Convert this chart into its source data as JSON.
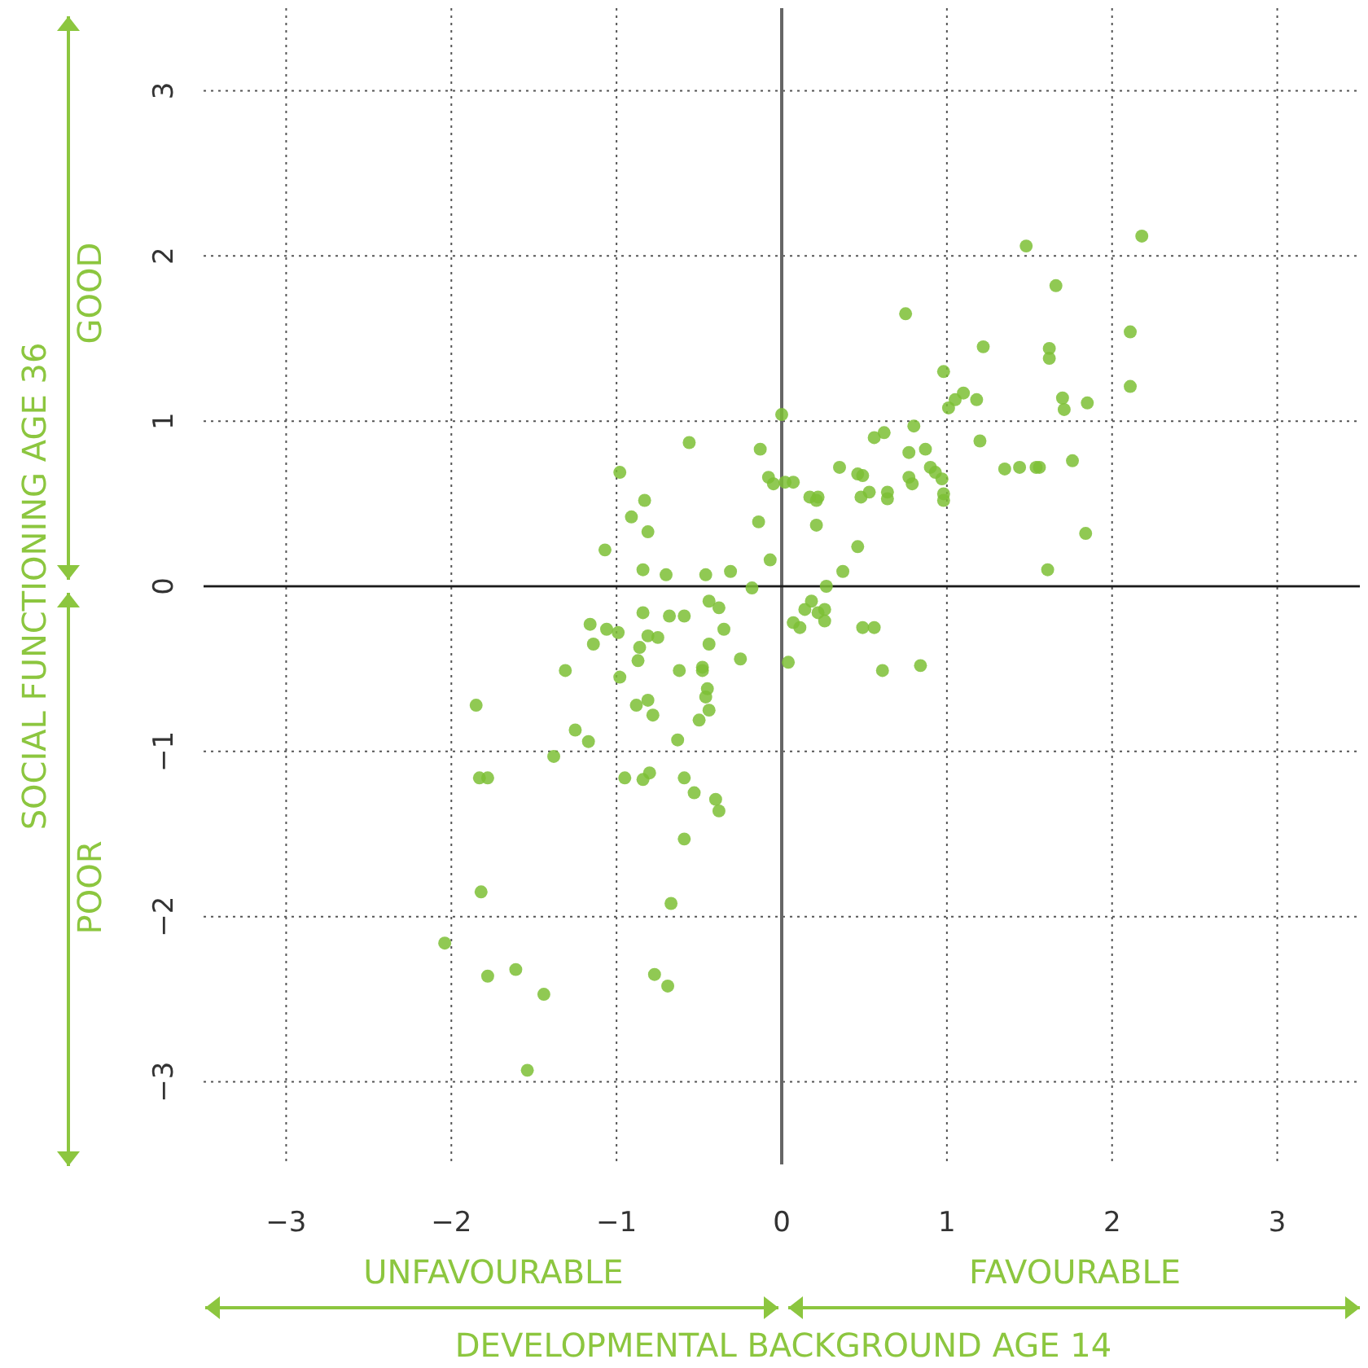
{
  "chart_data": {
    "type": "scatter",
    "xlabel": "DEVELOPMENTAL BACKGROUND AGE 14",
    "ylabel": "SOCIAL FUNCTIONING AGE 36",
    "annotations": [
      "GOOD",
      "POOR",
      "UNFAVOURABLE",
      "FAVOURABLE"
    ],
    "xlim": [
      -3.5,
      3.5
    ],
    "ylim": [
      -3.5,
      3.5
    ],
    "xticks": [
      {
        "value": -3,
        "label": "−3"
      },
      {
        "value": -2,
        "label": "−2"
      },
      {
        "value": -1,
        "label": "−1"
      },
      0,
      1,
      2,
      3
    ],
    "yticks": [
      {
        "value": -3,
        "label": "−3"
      },
      {
        "value": -2,
        "label": "−2"
      },
      {
        "value": -1,
        "label": "−1"
      },
      0,
      1,
      2,
      3
    ],
    "grid": true,
    "marker": "circle",
    "ref_lines": [
      {
        "axis": "x",
        "value": 0,
        "color": "#666666"
      },
      {
        "axis": "y",
        "value": 0,
        "color": "#1a1a1a"
      }
    ],
    "series": [
      {
        "color": "#7cbf35",
        "x": [
          1.48,
          2.18,
          1.66,
          1.22,
          1.62,
          1.62,
          2.11,
          2.11,
          1.7,
          1.71,
          1.85,
          1.76,
          1.56,
          1.84,
          1.61,
          0.75,
          0.98,
          1.1,
          1.05,
          1.01,
          1.18,
          0.0,
          0.8,
          0.62,
          0.56,
          1.2,
          -0.13,
          0.77,
          0.87,
          0.35,
          0.9,
          0.93,
          0.97,
          1.35,
          1.44,
          1.54,
          0.46,
          0.49,
          0.77,
          0.79,
          -0.08,
          -0.05,
          0.02,
          0.07,
          0.48,
          0.53,
          0.64,
          0.64,
          0.98,
          0.98,
          0.17,
          0.22,
          0.21,
          -0.14,
          0.21,
          0.46,
          -0.07,
          0.37,
          0.27,
          -0.18,
          0.18,
          0.14,
          0.22,
          0.26,
          0.26,
          0.07,
          0.11,
          0.49,
          0.56,
          0.04,
          0.61,
          0.84,
          -0.56,
          -0.98,
          -0.83,
          -0.91,
          -0.81,
          -1.07,
          -0.84,
          -0.7,
          -0.46,
          -0.31,
          -0.84,
          -0.68,
          -0.59,
          -0.44,
          -0.38,
          -1.16,
          -1.06,
          -0.99,
          -0.81,
          -0.75,
          -0.35,
          -1.14,
          -0.86,
          -0.44,
          -0.87,
          -0.25,
          -1.31,
          -0.62,
          -0.48,
          -0.48,
          -0.98,
          -0.45,
          -0.46,
          -0.44,
          -0.5,
          -0.88,
          -0.81,
          -0.78,
          -1.85,
          -1.25,
          -1.17,
          -0.63,
          -1.38,
          -1.83,
          -1.78,
          -0.95,
          -0.84,
          -0.8,
          -0.59,
          -0.53,
          -0.4,
          -0.38,
          -0.59,
          -1.82,
          -0.67,
          -2.04,
          -1.78,
          -1.61,
          -1.44,
          -0.77,
          -0.69,
          -1.54
        ],
        "values": [
          2.06,
          2.12,
          1.82,
          1.45,
          1.44,
          1.38,
          1.54,
          1.21,
          1.14,
          1.07,
          1.11,
          0.76,
          0.72,
          0.32,
          0.1,
          1.65,
          1.3,
          1.17,
          1.13,
          1.08,
          1.13,
          1.04,
          0.97,
          0.93,
          0.9,
          0.88,
          0.83,
          0.81,
          0.83,
          0.72,
          0.72,
          0.69,
          0.65,
          0.71,
          0.72,
          0.72,
          0.68,
          0.67,
          0.66,
          0.62,
          0.66,
          0.62,
          0.63,
          0.63,
          0.54,
          0.57,
          0.57,
          0.53,
          0.56,
          0.52,
          0.54,
          0.54,
          0.52,
          0.39,
          0.37,
          0.24,
          0.16,
          0.09,
          0.0,
          -0.01,
          -0.09,
          -0.14,
          -0.16,
          -0.14,
          -0.21,
          -0.22,
          -0.25,
          -0.25,
          -0.25,
          -0.46,
          -0.51,
          -0.48,
          0.87,
          0.69,
          0.52,
          0.42,
          0.33,
          0.22,
          0.1,
          0.07,
          0.07,
          0.09,
          -0.16,
          -0.18,
          -0.18,
          -0.09,
          -0.13,
          -0.23,
          -0.26,
          -0.28,
          -0.3,
          -0.31,
          -0.26,
          -0.35,
          -0.37,
          -0.35,
          -0.45,
          -0.44,
          -0.51,
          -0.51,
          -0.49,
          -0.51,
          -0.55,
          -0.62,
          -0.67,
          -0.75,
          -0.81,
          -0.72,
          -0.69,
          -0.78,
          -0.72,
          -0.87,
          -0.94,
          -0.93,
          -1.03,
          -1.16,
          -1.16,
          -1.16,
          -1.17,
          -1.13,
          -1.16,
          -1.25,
          -1.29,
          -1.36,
          -1.53,
          -1.85,
          -1.92,
          -2.16,
          -2.36,
          -2.32,
          -2.47,
          -2.35,
          -2.42,
          -2.93
        ]
      }
    ]
  }
}
